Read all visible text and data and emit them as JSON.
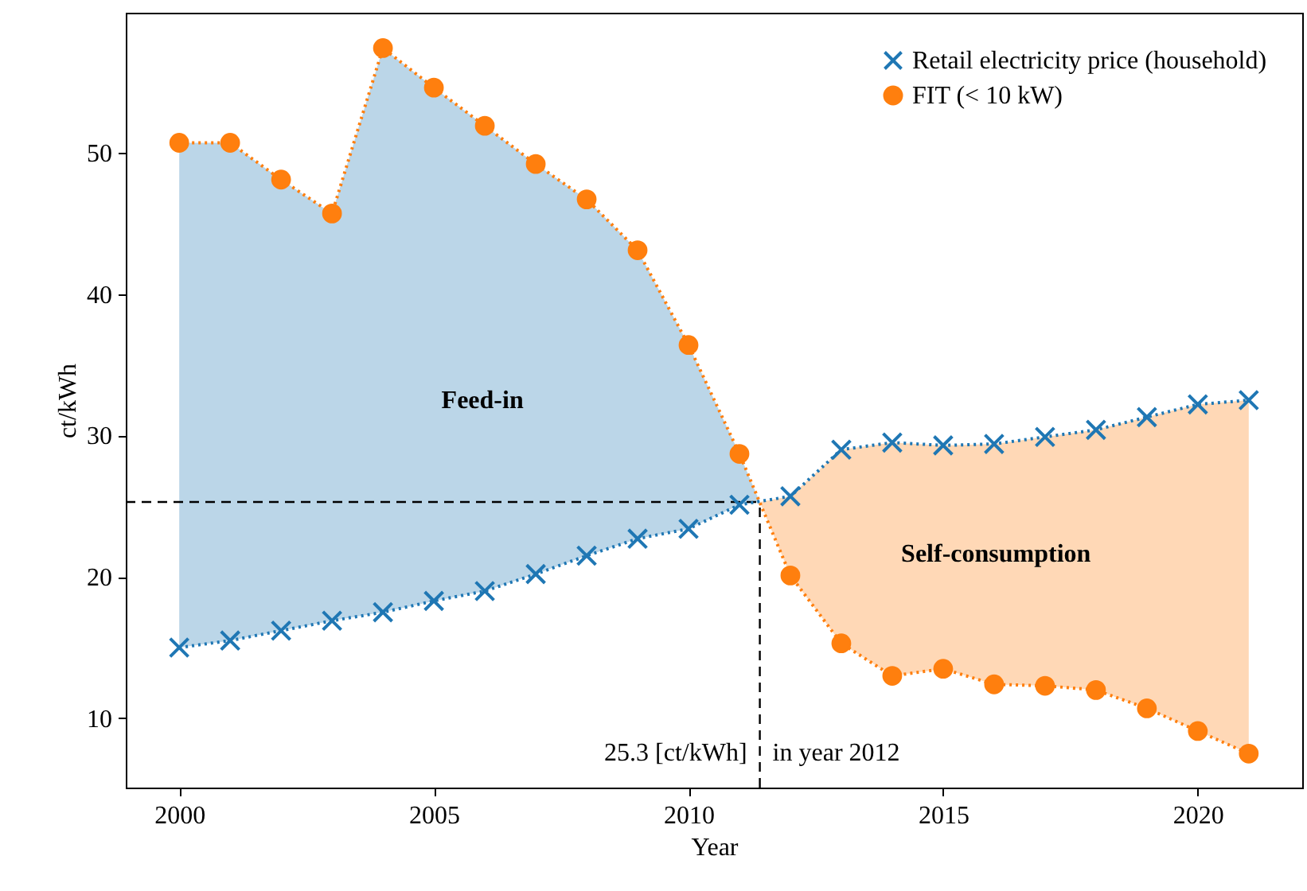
{
  "chart_data": {
    "type": "line",
    "xlabel": "Year",
    "ylabel": "ct/kWh",
    "x": [
      2000,
      2001,
      2002,
      2003,
      2004,
      2005,
      2006,
      2007,
      2008,
      2009,
      2010,
      2011,
      2011.4,
      2012,
      2013,
      2014,
      2015,
      2016,
      2017,
      2018,
      2019,
      2020,
      2021
    ],
    "series": [
      {
        "name": "Retail electricity price (household)",
        "color": "#1f77b4",
        "marker": "cross",
        "values": [
          15.0,
          15.5,
          16.2,
          16.9,
          17.5,
          18.3,
          19.0,
          20.2,
          21.5,
          22.7,
          23.4,
          25.1,
          null,
          25.7,
          29.0,
          29.5,
          29.3,
          29.4,
          29.9,
          30.4,
          31.3,
          32.2,
          32.5
        ],
        "lower": [
          15.0,
          15.5,
          16.2,
          16.9,
          17.5,
          18.3,
          19.0,
          20.2,
          21.5,
          22.7,
          23.4,
          25.1,
          25.3,
          null,
          null,
          null,
          null,
          null,
          null,
          null,
          null,
          null,
          null
        ],
        "upper": [
          50.7,
          50.7,
          48.1,
          45.7,
          57.4,
          54.6,
          51.9,
          49.2,
          46.7,
          43.1,
          36.4,
          28.7,
          25.3,
          null,
          null,
          null,
          null,
          null,
          null,
          null,
          null,
          null,
          null
        ]
      },
      {
        "name": "FIT (< 10 kW)",
        "color": "#ff7f0e",
        "marker": "circle",
        "values": [
          50.7,
          50.7,
          48.1,
          45.7,
          57.4,
          54.6,
          51.9,
          49.2,
          46.7,
          43.1,
          36.4,
          28.7,
          null,
          20.1,
          15.3,
          13.0,
          13.5,
          12.4,
          12.3,
          12.0,
          10.7,
          9.1,
          7.5
        ],
        "lower": [
          null,
          null,
          null,
          null,
          null,
          null,
          null,
          null,
          null,
          null,
          null,
          null,
          25.3,
          20.1,
          15.3,
          13.0,
          13.5,
          12.4,
          12.3,
          12.0,
          10.7,
          9.1,
          7.5
        ],
        "upper": [
          null,
          null,
          null,
          null,
          null,
          null,
          null,
          null,
          null,
          null,
          null,
          null,
          25.3,
          25.7,
          29.0,
          29.5,
          29.3,
          29.4,
          29.9,
          30.4,
          31.3,
          32.2,
          32.5
        ]
      }
    ],
    "line_style": "dotted",
    "legend": "top right",
    "grid": false,
    "xlim": [
      1998.95,
      2022.05
    ],
    "xticks": [
      2000,
      2005,
      2010,
      2015,
      2020
    ],
    "ylim": [
      5.1,
      59.9
    ],
    "yticks": [
      10,
      20,
      30,
      40,
      50
    ],
    "ref_lines": [
      {
        "axis": "y",
        "value": 25.3,
        "line_style": "dashed",
        "color": "#000000"
      },
      {
        "axis": "x",
        "value": 2011.4,
        "line_style": "dashed",
        "color": "#000000"
      }
    ],
    "annotations": [
      "Feed-in",
      "Self-consumption",
      "25.3 [ct/kWh]",
      "in year 2012"
    ]
  }
}
